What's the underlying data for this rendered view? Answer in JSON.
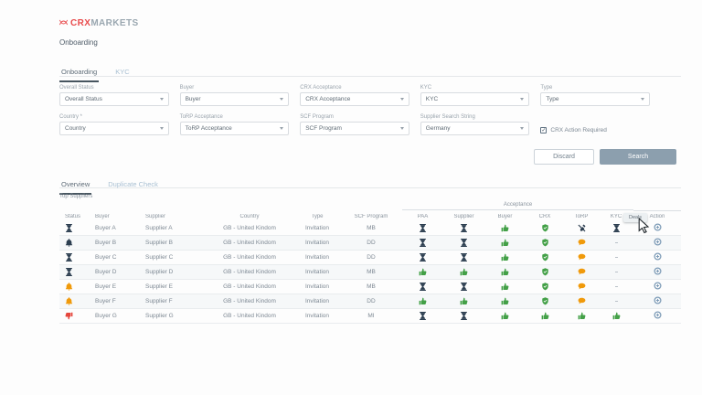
{
  "brand": {
    "logo_text_primary": "CRX",
    "logo_text_secondary": "MARKETS"
  },
  "page_title": "Onboarding",
  "top_tabs": [
    {
      "label": "Onboarding",
      "active": true
    },
    {
      "label": "KYC",
      "active": false
    }
  ],
  "filters": {
    "fields_row1": [
      {
        "id": "overall-status",
        "label": "Overall Status",
        "value": "Overall Status"
      },
      {
        "id": "buyer",
        "label": "Buyer",
        "value": "Buyer"
      },
      {
        "id": "crx-acceptance",
        "label": "CRX Acceptance",
        "value": "CRX Acceptance"
      },
      {
        "id": "kyc",
        "label": "KYC",
        "value": "KYC"
      },
      {
        "id": "type",
        "label": "Type",
        "value": "Type"
      }
    ],
    "fields_row2": [
      {
        "id": "country",
        "label": "Country *",
        "value": "Country"
      },
      {
        "id": "torp-acceptance",
        "label": "ToRP Acceptance",
        "value": "ToRP Acceptance"
      },
      {
        "id": "scf-program",
        "label": "SCF Program",
        "value": "SCF Program"
      },
      {
        "id": "supplier-search-string",
        "label": "Supplier Search String",
        "value": "Germany"
      }
    ],
    "checkbox": {
      "label": "CRX Action Required",
      "checked": true,
      "check_glyph": "✓"
    }
  },
  "actions": {
    "discard_label": "Discard",
    "search_label": "Search"
  },
  "section_tabs": [
    {
      "label": "Overview",
      "active": true
    },
    {
      "label": "Duplicate Check",
      "active": false
    }
  ],
  "table": {
    "caption": "Top Suppliers",
    "group_header": "Acceptance",
    "columns": [
      "Status",
      "Buyer",
      "Supplier",
      "Country",
      "Type",
      "SCF Program",
      "PAA",
      "Supplier",
      "Buyer",
      "CRX",
      "ToRP",
      "KYC",
      "Action"
    ],
    "tooltip": "Deals",
    "rows": [
      {
        "status": {
          "icon": "hourglass",
          "color": "navy"
        },
        "buyer": "Buyer A",
        "supplier": "Supplier A",
        "country": "GB - United Kindom",
        "type": "Invitation",
        "scf_program": "MB",
        "acceptance": {
          "paa": {
            "icon": "hourglass",
            "color": "navy"
          },
          "supplier": {
            "icon": "hourglass",
            "color": "navy"
          },
          "buyer": {
            "icon": "thumbs-up",
            "color": "green"
          },
          "crx": {
            "icon": "shield-check",
            "color": "green"
          },
          "torp": {
            "icon": "edit-off",
            "color": "navy"
          },
          "kyc": {
            "icon": "hourglass",
            "color": "navy"
          }
        },
        "action": {
          "icon": "plus-circle",
          "color": "action_blue"
        }
      },
      {
        "status": {
          "icon": "bell",
          "color": "navy"
        },
        "buyer": "Buyer B",
        "supplier": "Supplier B",
        "country": "GB - United Kindom",
        "type": "Invitation",
        "scf_program": "DD",
        "acceptance": {
          "paa": {
            "icon": "hourglass",
            "color": "navy"
          },
          "supplier": {
            "icon": "hourglass",
            "color": "navy"
          },
          "buyer": {
            "icon": "thumbs-up",
            "color": "green"
          },
          "crx": {
            "icon": "shield-check",
            "color": "green"
          },
          "torp": {
            "icon": "chat",
            "color": "orange"
          },
          "kyc": {
            "icon": "dash",
            "color": "gray"
          }
        },
        "action": {
          "icon": "plus-circle",
          "color": "action_blue"
        }
      },
      {
        "status": {
          "icon": "hourglass",
          "color": "navy"
        },
        "buyer": "Buyer C",
        "supplier": "Supplier C",
        "country": "GB - United Kindom",
        "type": "Invitation",
        "scf_program": "DD",
        "acceptance": {
          "paa": {
            "icon": "hourglass",
            "color": "navy"
          },
          "supplier": {
            "icon": "hourglass",
            "color": "navy"
          },
          "buyer": {
            "icon": "thumbs-up",
            "color": "green"
          },
          "crx": {
            "icon": "shield-check",
            "color": "green"
          },
          "torp": {
            "icon": "chat",
            "color": "orange"
          },
          "kyc": {
            "icon": "dash",
            "color": "gray"
          }
        },
        "action": {
          "icon": "plus-circle",
          "color": "action_blue"
        }
      },
      {
        "status": {
          "icon": "hourglass",
          "color": "navy"
        },
        "buyer": "Buyer D",
        "supplier": "Supplier D",
        "country": "GB - United Kindom",
        "type": "Invitation",
        "scf_program": "MB",
        "acceptance": {
          "paa": {
            "icon": "thumbs-up",
            "color": "green"
          },
          "supplier": {
            "icon": "thumbs-up",
            "color": "green"
          },
          "buyer": {
            "icon": "thumbs-up",
            "color": "green"
          },
          "crx": {
            "icon": "shield-check",
            "color": "green"
          },
          "torp": {
            "icon": "chat",
            "color": "orange"
          },
          "kyc": {
            "icon": "dash",
            "color": "gray"
          }
        },
        "action": {
          "icon": "plus-circle",
          "color": "action_blue"
        }
      },
      {
        "status": {
          "icon": "bell",
          "color": "orange"
        },
        "buyer": "Buyer E",
        "supplier": "Supplier E",
        "country": "GB - United Kindom",
        "type": "Invitation",
        "scf_program": "MB",
        "acceptance": {
          "paa": {
            "icon": "hourglass",
            "color": "navy"
          },
          "supplier": {
            "icon": "hourglass",
            "color": "navy"
          },
          "buyer": {
            "icon": "thumbs-up",
            "color": "green"
          },
          "crx": {
            "icon": "shield-check",
            "color": "green"
          },
          "torp": {
            "icon": "chat",
            "color": "orange"
          },
          "kyc": {
            "icon": "dash",
            "color": "gray"
          }
        },
        "action": {
          "icon": "plus-circle",
          "color": "action_blue"
        }
      },
      {
        "status": {
          "icon": "bell",
          "color": "orange"
        },
        "buyer": "Buyer F",
        "supplier": "Supplier F",
        "country": "GB - United Kindom",
        "type": "Invitation",
        "scf_program": "DD",
        "acceptance": {
          "paa": {
            "icon": "thumbs-up",
            "color": "green"
          },
          "supplier": {
            "icon": "thumbs-up",
            "color": "green"
          },
          "buyer": {
            "icon": "thumbs-up",
            "color": "green"
          },
          "crx": {
            "icon": "shield-check",
            "color": "green"
          },
          "torp": {
            "icon": "chat",
            "color": "orange"
          },
          "kyc": {
            "icon": "dash",
            "color": "gray"
          }
        },
        "action": {
          "icon": "plus-circle",
          "color": "action_blue"
        }
      },
      {
        "status": {
          "icon": "thumbs-down",
          "color": "red"
        },
        "buyer": "Buyer G",
        "supplier": "Supplier G",
        "country": "GB - United Kindom",
        "type": "Invitation",
        "scf_program": "MI",
        "acceptance": {
          "paa": {
            "icon": "hourglass",
            "color": "navy"
          },
          "supplier": {
            "icon": "hourglass",
            "color": "navy"
          },
          "buyer": {
            "icon": "thumbs-up",
            "color": "green"
          },
          "crx": {
            "icon": "thumbs-up",
            "color": "green"
          },
          "torp": {
            "icon": "thumbs-up",
            "color": "green"
          },
          "kyc": {
            "icon": "thumbs-up",
            "color": "green"
          }
        },
        "action": {
          "icon": "plus-circle",
          "color": "action_blue"
        }
      }
    ]
  },
  "colors": {
    "navy": "#2c3e50",
    "green": "#43a047",
    "orange": "#f09a0b",
    "red": "#e5463c",
    "gray": "#b3bbc2",
    "action_blue": "#7f9db8",
    "brand_red": "#e84b4c",
    "button_slate": "#8c9fae"
  }
}
